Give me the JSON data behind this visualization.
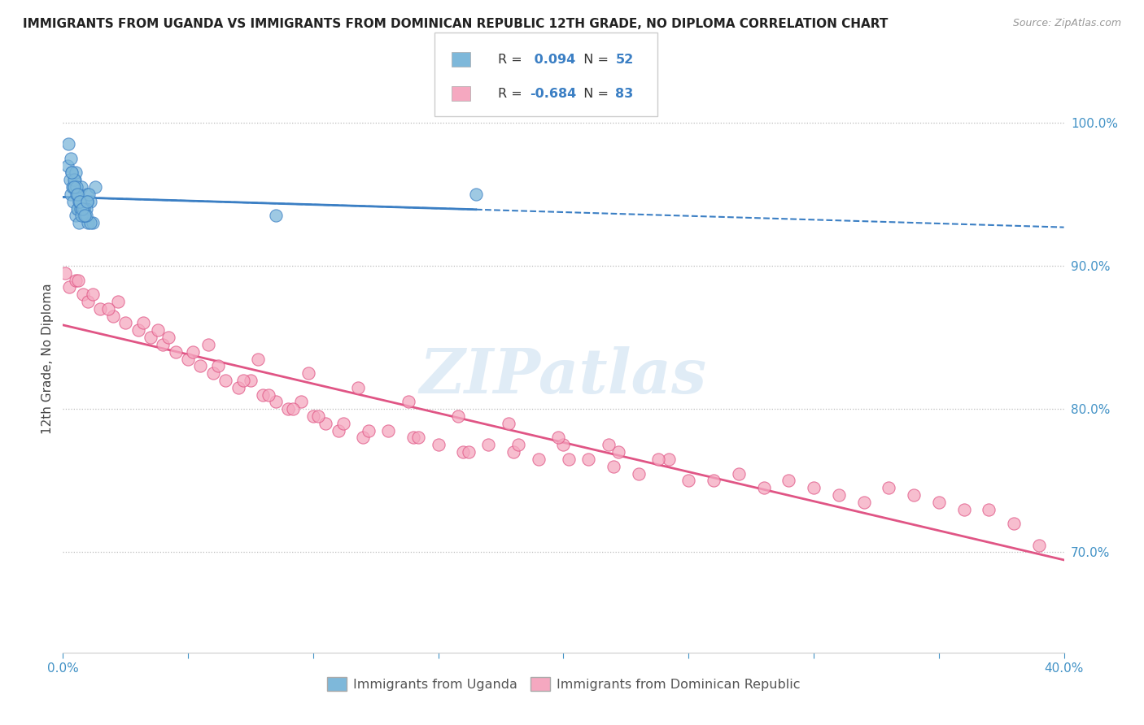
{
  "title": "IMMIGRANTS FROM UGANDA VS IMMIGRANTS FROM DOMINICAN REPUBLIC 12TH GRADE, NO DIPLOMA CORRELATION CHART",
  "source": "Source: ZipAtlas.com",
  "ylabel": "12th Grade, No Diploma",
  "legend_uganda": "Immigrants from Uganda",
  "legend_dr": "Immigrants from Dominican Republic",
  "r_uganda": 0.094,
  "n_uganda": 52,
  "r_dr": -0.684,
  "n_dr": 83,
  "blue_color": "#7EB8DA",
  "blue_line_color": "#3B7FC4",
  "pink_color": "#F5A8C0",
  "pink_line_color": "#E05585",
  "watermark": "ZIPatlas",
  "xmin": 0.0,
  "xmax": 40.0,
  "ymin": 63.0,
  "ymax": 104.0,
  "right_yticks": [
    70.0,
    80.0,
    90.0,
    100.0
  ],
  "uganda_x": [
    0.18,
    0.22,
    0.3,
    0.35,
    0.4,
    0.45,
    0.5,
    0.55,
    0.6,
    0.65,
    0.7,
    0.75,
    0.8,
    0.85,
    0.9,
    0.95,
    1.0,
    1.1,
    1.2,
    1.3,
    0.28,
    0.32,
    0.48,
    0.58,
    0.68,
    0.78,
    0.88,
    0.98,
    1.08,
    0.42,
    0.52,
    0.62,
    0.72,
    0.82,
    0.92,
    0.38,
    0.44,
    0.54,
    0.64,
    0.74,
    0.84,
    0.94,
    1.04,
    0.36,
    0.46,
    0.56,
    0.66,
    0.76,
    0.86,
    0.96,
    8.5,
    16.5
  ],
  "uganda_y": [
    97.0,
    98.5,
    95.0,
    96.5,
    94.5,
    95.5,
    93.5,
    95.0,
    94.0,
    93.0,
    94.5,
    95.5,
    94.0,
    93.5,
    94.5,
    95.0,
    93.0,
    94.5,
    93.0,
    95.5,
    96.0,
    97.5,
    96.0,
    94.0,
    94.5,
    94.0,
    93.5,
    94.5,
    93.0,
    95.5,
    96.5,
    95.0,
    94.0,
    93.5,
    94.0,
    95.5,
    96.0,
    95.5,
    94.5,
    93.5,
    94.0,
    93.5,
    95.0,
    96.5,
    95.5,
    95.0,
    94.5,
    94.0,
    93.5,
    94.5,
    93.5,
    95.0
  ],
  "dr_x": [
    0.1,
    0.25,
    0.5,
    0.8,
    1.0,
    1.5,
    2.0,
    2.5,
    3.0,
    3.5,
    4.0,
    4.5,
    5.0,
    5.5,
    6.0,
    6.5,
    7.0,
    7.5,
    8.0,
    8.5,
    9.0,
    9.5,
    10.0,
    10.5,
    11.0,
    12.0,
    13.0,
    14.0,
    15.0,
    16.0,
    17.0,
    18.0,
    19.0,
    20.0,
    21.0,
    22.0,
    23.0,
    25.0,
    27.0,
    29.0,
    31.0,
    33.0,
    35.0,
    37.0,
    39.0,
    1.2,
    2.2,
    3.2,
    4.2,
    5.2,
    6.2,
    7.2,
    8.2,
    9.2,
    10.2,
    11.2,
    12.2,
    14.2,
    16.2,
    18.2,
    20.2,
    22.2,
    24.2,
    26.0,
    28.0,
    30.0,
    32.0,
    34.0,
    36.0,
    38.0,
    0.6,
    1.8,
    3.8,
    5.8,
    7.8,
    9.8,
    11.8,
    13.8,
    15.8,
    17.8,
    19.8,
    21.8,
    23.8
  ],
  "dr_y": [
    89.5,
    88.5,
    89.0,
    88.0,
    87.5,
    87.0,
    86.5,
    86.0,
    85.5,
    85.0,
    84.5,
    84.0,
    83.5,
    83.0,
    82.5,
    82.0,
    81.5,
    82.0,
    81.0,
    80.5,
    80.0,
    80.5,
    79.5,
    79.0,
    78.5,
    78.0,
    78.5,
    78.0,
    77.5,
    77.0,
    77.5,
    77.0,
    76.5,
    77.5,
    76.5,
    76.0,
    75.5,
    75.0,
    75.5,
    75.0,
    74.0,
    74.5,
    73.5,
    73.0,
    70.5,
    88.0,
    87.5,
    86.0,
    85.0,
    84.0,
    83.0,
    82.0,
    81.0,
    80.0,
    79.5,
    79.0,
    78.5,
    78.0,
    77.0,
    77.5,
    76.5,
    77.0,
    76.5,
    75.0,
    74.5,
    74.5,
    73.5,
    74.0,
    73.0,
    72.0,
    89.0,
    87.0,
    85.5,
    84.5,
    83.5,
    82.5,
    81.5,
    80.5,
    79.5,
    79.0,
    78.0,
    77.5,
    76.5
  ]
}
